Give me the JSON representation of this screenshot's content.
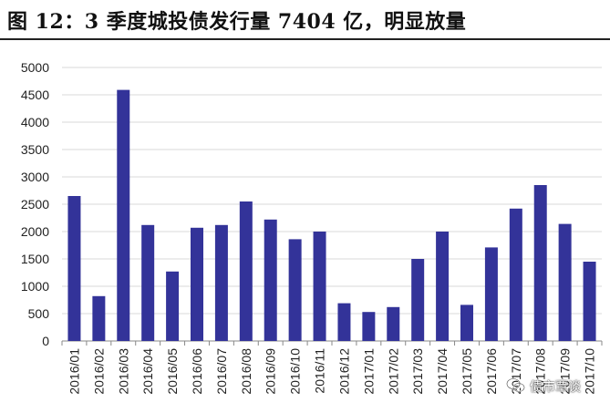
{
  "title": "图 12：3 季度城投债发行量 7404 亿，明显放量",
  "watermark": "债市覃谈",
  "chart_data": {
    "type": "bar",
    "title": "图 12：3 季度城投债发行量 7404 亿，明显放量",
    "xlabel": "",
    "ylabel": "",
    "ylim": [
      0,
      5000
    ],
    "yticks": [
      0,
      500,
      1000,
      1500,
      2000,
      2500,
      3000,
      3500,
      4000,
      4500,
      5000
    ],
    "grid": true,
    "legend": "none",
    "bar_color": "#333399",
    "categories": [
      "2016/01",
      "2016/02",
      "2016/03",
      "2016/04",
      "2016/05",
      "2016/06",
      "2016/07",
      "2016/08",
      "2016/09",
      "2016/10",
      "2016/11",
      "2016/12",
      "2017/01",
      "2017/02",
      "2017/03",
      "2017/04",
      "2017/05",
      "2017/06",
      "2017/07",
      "2017/08",
      "2017/09",
      "2017/10"
    ],
    "values": [
      2650,
      820,
      4590,
      2120,
      1270,
      2070,
      2120,
      2550,
      2220,
      1860,
      2000,
      690,
      530,
      620,
      1500,
      2000,
      660,
      1710,
      2420,
      2850,
      2140,
      1450
    ]
  }
}
